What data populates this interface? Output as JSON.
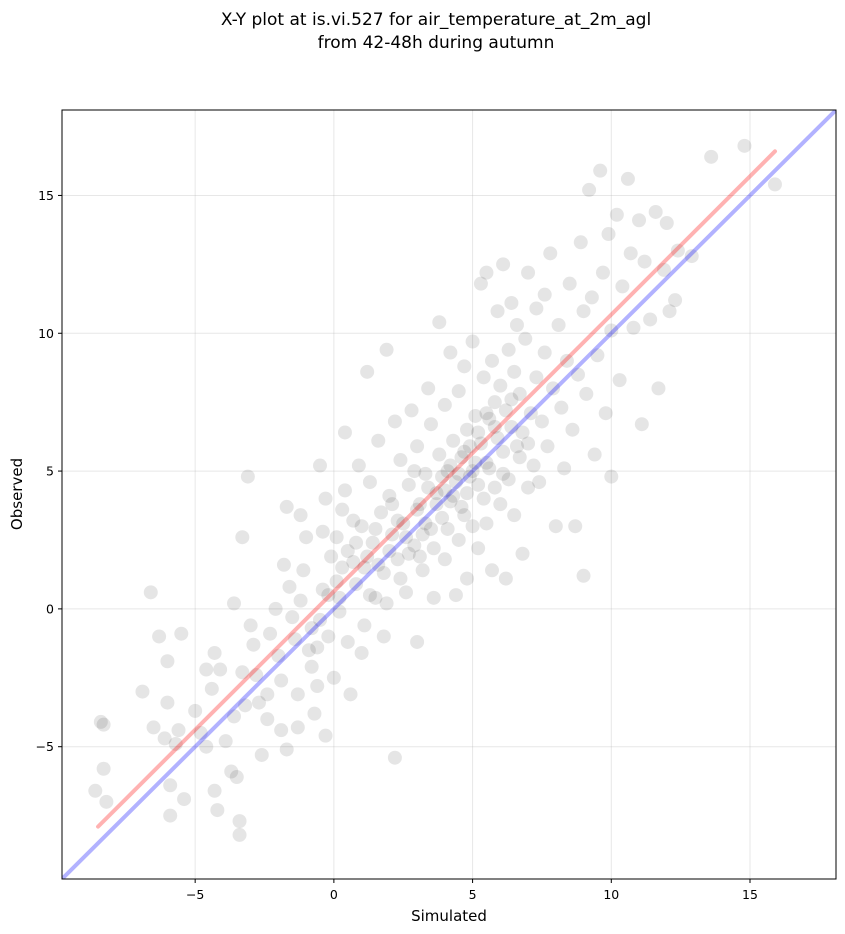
{
  "chart_data": {
    "type": "scatter",
    "title": [
      "X-Y plot at is.vi.527 for air_temperature_at_2m_agl",
      "from 42-48h during autumn"
    ],
    "xlabel": "Simulated",
    "ylabel": "Observed",
    "xlim": [
      -9.8,
      18.1
    ],
    "ylim": [
      -9.8,
      18.1
    ],
    "xticks": [
      -5,
      0,
      5,
      10,
      15
    ],
    "yticks": [
      -5,
      0,
      5,
      10,
      15
    ],
    "xtick_labels": [
      "−5",
      "0",
      "5",
      "10",
      "15"
    ],
    "ytick_labels": [
      "−5",
      "0",
      "5",
      "10",
      "15"
    ],
    "grid": true,
    "point_color": "#000000",
    "point_alpha": 0.1,
    "reference_lines": [
      {
        "color": "#0000ff",
        "alpha": 0.3,
        "x": [
          -9.8,
          18.1
        ],
        "y": [
          -9.8,
          18.1
        ]
      },
      {
        "color": "#ff0000",
        "alpha": 0.3,
        "x": [
          -8.5,
          15.9
        ],
        "y": [
          -7.9,
          16.6
        ]
      }
    ],
    "points": [
      [
        -8.6,
        -6.6
      ],
      [
        -8.4,
        -4.1
      ],
      [
        -8.3,
        -4.2
      ],
      [
        -8.3,
        -5.8
      ],
      [
        -8.2,
        -7.0
      ],
      [
        -6.6,
        0.6
      ],
      [
        -6.9,
        -3.0
      ],
      [
        -6.5,
        -4.3
      ],
      [
        -6.3,
        -1.0
      ],
      [
        -6.1,
        -4.7
      ],
      [
        -6.0,
        -1.9
      ],
      [
        -6.0,
        -3.4
      ],
      [
        -5.7,
        -4.9
      ],
      [
        -5.5,
        -0.9
      ],
      [
        -5.6,
        -4.4
      ],
      [
        -5.9,
        -6.4
      ],
      [
        -5.9,
        -7.5
      ],
      [
        -5.4,
        -6.9
      ],
      [
        -5.0,
        -3.7
      ],
      [
        -4.8,
        -4.5
      ],
      [
        -4.6,
        -2.2
      ],
      [
        -4.4,
        -2.9
      ],
      [
        -4.3,
        -1.6
      ],
      [
        -4.1,
        -2.2
      ],
      [
        -4.6,
        -5.0
      ],
      [
        -4.3,
        -6.6
      ],
      [
        -4.2,
        -7.3
      ],
      [
        -3.9,
        -4.8
      ],
      [
        -3.6,
        -3.9
      ],
      [
        -3.7,
        -5.9
      ],
      [
        -3.6,
        0.2
      ],
      [
        -3.3,
        -2.3
      ],
      [
        -3.5,
        -6.1
      ],
      [
        -3.4,
        -8.2
      ],
      [
        -3.4,
        -7.7
      ],
      [
        -3.3,
        2.6
      ],
      [
        -3.1,
        4.8
      ],
      [
        -3.2,
        -3.5
      ],
      [
        -3.0,
        -0.6
      ],
      [
        -2.9,
        -1.3
      ],
      [
        -2.8,
        -2.4
      ],
      [
        -2.7,
        -3.4
      ],
      [
        -2.6,
        -5.3
      ],
      [
        -2.4,
        -4.0
      ],
      [
        -2.4,
        -3.1
      ],
      [
        -2.3,
        -0.9
      ],
      [
        -2.1,
        0.0
      ],
      [
        -2.0,
        -1.7
      ],
      [
        -1.9,
        -2.6
      ],
      [
        -1.9,
        -4.4
      ],
      [
        -1.7,
        -5.1
      ],
      [
        -1.7,
        3.7
      ],
      [
        -1.6,
        0.8
      ],
      [
        -1.5,
        -0.3
      ],
      [
        -1.4,
        -1.1
      ],
      [
        -1.3,
        -3.1
      ],
      [
        -1.3,
        -4.3
      ],
      [
        -1.2,
        3.4
      ],
      [
        -1.1,
        1.4
      ],
      [
        -1.0,
        2.6
      ],
      [
        -0.8,
        -0.7
      ],
      [
        -0.8,
        -2.1
      ],
      [
        -0.7,
        -3.8
      ],
      [
        -0.6,
        -1.4
      ],
      [
        -0.5,
        5.2
      ],
      [
        -0.5,
        -0.4
      ],
      [
        -0.4,
        0.7
      ],
      [
        -0.4,
        2.8
      ],
      [
        -0.3,
        -4.6
      ],
      [
        -0.3,
        4.0
      ],
      [
        -0.2,
        -1.0
      ],
      [
        -0.1,
        1.9
      ],
      [
        0.0,
        -2.5
      ],
      [
        0.1,
        2.6
      ],
      [
        0.1,
        1.0
      ],
      [
        0.2,
        -0.1
      ],
      [
        0.3,
        3.6
      ],
      [
        0.4,
        6.4
      ],
      [
        0.4,
        4.3
      ],
      [
        0.5,
        2.1
      ],
      [
        0.6,
        -3.1
      ],
      [
        0.7,
        1.7
      ],
      [
        0.8,
        0.9
      ],
      [
        0.9,
        5.2
      ],
      [
        1.0,
        3.0
      ],
      [
        1.1,
        -0.6
      ],
      [
        1.2,
        8.6
      ],
      [
        1.2,
        1.9
      ],
      [
        1.3,
        4.6
      ],
      [
        1.4,
        2.4
      ],
      [
        1.5,
        0.4
      ],
      [
        1.6,
        6.1
      ],
      [
        1.7,
        3.5
      ],
      [
        1.8,
        -1.0
      ],
      [
        1.8,
        1.3
      ],
      [
        1.9,
        9.4
      ],
      [
        2.0,
        4.1
      ],
      [
        2.1,
        2.7
      ],
      [
        2.2,
        -5.4
      ],
      [
        2.2,
        6.8
      ],
      [
        2.3,
        1.8
      ],
      [
        2.4,
        5.4
      ],
      [
        2.5,
        3.1
      ],
      [
        2.6,
        0.6
      ],
      [
        2.7,
        4.5
      ],
      [
        2.8,
        7.2
      ],
      [
        2.9,
        2.3
      ],
      [
        3.0,
        -1.2
      ],
      [
        3.0,
        5.9
      ],
      [
        3.1,
        3.8
      ],
      [
        3.2,
        1.4
      ],
      [
        3.3,
        4.9
      ],
      [
        3.4,
        8.0
      ],
      [
        3.5,
        2.9
      ],
      [
        3.5,
        6.7
      ],
      [
        3.6,
        0.4
      ],
      [
        3.7,
        4.2
      ],
      [
        3.8,
        5.6
      ],
      [
        3.8,
        10.4
      ],
      [
        3.9,
        3.3
      ],
      [
        4.0,
        7.4
      ],
      [
        4.0,
        1.8
      ],
      [
        4.1,
        5.0
      ],
      [
        4.2,
        9.3
      ],
      [
        4.2,
        3.9
      ],
      [
        4.3,
        6.1
      ],
      [
        4.4,
        0.5
      ],
      [
        4.4,
        4.6
      ],
      [
        4.5,
        7.9
      ],
      [
        4.5,
        2.5
      ],
      [
        4.6,
        5.5
      ],
      [
        4.7,
        3.4
      ],
      [
        4.7,
        8.8
      ],
      [
        4.8,
        6.5
      ],
      [
        4.8,
        1.1
      ],
      [
        4.9,
        4.8
      ],
      [
        5.0,
        9.7
      ],
      [
        5.0,
        3.0
      ],
      [
        5.1,
        7.0
      ],
      [
        5.1,
        5.3
      ],
      [
        5.2,
        2.2
      ],
      [
        5.3,
        11.8
      ],
      [
        5.3,
        6.0
      ],
      [
        5.4,
        4.0
      ],
      [
        5.4,
        8.4
      ],
      [
        5.5,
        3.1
      ],
      [
        5.5,
        12.2
      ],
      [
        5.6,
        6.9
      ],
      [
        5.6,
        5.1
      ],
      [
        5.7,
        1.4
      ],
      [
        5.7,
        9.0
      ],
      [
        5.8,
        7.5
      ],
      [
        5.8,
        4.4
      ],
      [
        5.9,
        10.8
      ],
      [
        5.9,
        6.2
      ],
      [
        6.0,
        3.8
      ],
      [
        6.0,
        8.1
      ],
      [
        6.1,
        5.7
      ],
      [
        6.1,
        12.5
      ],
      [
        6.2,
        1.1
      ],
      [
        6.2,
        7.2
      ],
      [
        6.3,
        9.4
      ],
      [
        6.3,
        4.7
      ],
      [
        6.4,
        6.6
      ],
      [
        6.4,
        11.1
      ],
      [
        6.5,
        8.6
      ],
      [
        6.5,
        3.4
      ],
      [
        6.6,
        5.9
      ],
      [
        6.6,
        10.3
      ],
      [
        6.7,
        7.8
      ],
      [
        6.8,
        2.0
      ],
      [
        6.8,
        6.4
      ],
      [
        6.9,
        9.8
      ],
      [
        7.0,
        4.4
      ],
      [
        7.0,
        12.2
      ],
      [
        7.1,
        7.1
      ],
      [
        7.2,
        5.2
      ],
      [
        7.3,
        10.9
      ],
      [
        7.3,
        8.4
      ],
      [
        7.4,
        4.6
      ],
      [
        7.5,
        6.8
      ],
      [
        7.6,
        11.4
      ],
      [
        7.6,
        9.3
      ],
      [
        7.7,
        5.9
      ],
      [
        7.8,
        12.9
      ],
      [
        7.9,
        8.0
      ],
      [
        8.0,
        3.0
      ],
      [
        8.1,
        10.3
      ],
      [
        8.2,
        7.3
      ],
      [
        8.3,
        5.1
      ],
      [
        8.4,
        9.0
      ],
      [
        8.5,
        11.8
      ],
      [
        8.6,
        6.5
      ],
      [
        8.7,
        3.0
      ],
      [
        8.8,
        8.5
      ],
      [
        8.9,
        13.3
      ],
      [
        9.0,
        1.2
      ],
      [
        9.0,
        10.8
      ],
      [
        9.1,
        7.8
      ],
      [
        9.2,
        15.2
      ],
      [
        9.3,
        11.3
      ],
      [
        9.4,
        5.6
      ],
      [
        9.5,
        9.2
      ],
      [
        9.6,
        15.9
      ],
      [
        9.7,
        12.2
      ],
      [
        9.8,
        7.1
      ],
      [
        9.9,
        13.6
      ],
      [
        10.0,
        10.1
      ],
      [
        10.0,
        4.8
      ],
      [
        10.2,
        14.3
      ],
      [
        10.3,
        8.3
      ],
      [
        10.4,
        11.7
      ],
      [
        10.6,
        15.6
      ],
      [
        10.7,
        12.9
      ],
      [
        10.8,
        10.2
      ],
      [
        11.0,
        14.1
      ],
      [
        11.1,
        6.7
      ],
      [
        11.2,
        12.6
      ],
      [
        11.4,
        10.5
      ],
      [
        11.6,
        14.4
      ],
      [
        11.7,
        8.0
      ],
      [
        11.9,
        12.3
      ],
      [
        12.0,
        14.0
      ],
      [
        12.1,
        10.8
      ],
      [
        12.3,
        11.2
      ],
      [
        12.4,
        13.0
      ],
      [
        12.9,
        12.8
      ],
      [
        13.6,
        16.4
      ],
      [
        14.8,
        16.8
      ],
      [
        15.9,
        15.4
      ],
      [
        -1.8,
        1.6
      ],
      [
        -1.2,
        0.3
      ],
      [
        -0.9,
        -1.5
      ],
      [
        -0.6,
        -2.8
      ],
      [
        0.2,
        0.4
      ],
      [
        0.5,
        -1.2
      ],
      [
        0.7,
        3.2
      ],
      [
        1.0,
        -1.6
      ],
      [
        1.3,
        0.5
      ],
      [
        1.5,
        2.9
      ],
      [
        1.9,
        0.2
      ],
      [
        2.1,
        3.8
      ],
      [
        2.4,
        1.1
      ],
      [
        2.7,
        2.0
      ],
      [
        2.9,
        5.0
      ],
      [
        3.1,
        1.9
      ],
      [
        3.3,
        3.1
      ],
      [
        3.6,
        2.2
      ],
      [
        3.9,
        4.8
      ],
      [
        4.1,
        2.9
      ],
      [
        4.3,
        4.1
      ],
      [
        4.6,
        3.7
      ],
      [
        4.9,
        5.9
      ],
      [
        5.2,
        4.5
      ],
      [
        5.5,
        5.3
      ],
      [
        5.8,
        6.6
      ],
      [
        6.1,
        4.9
      ],
      [
        6.4,
        7.6
      ],
      [
        6.7,
        5.5
      ],
      [
        7.0,
        6.0
      ],
      [
        3.7,
        3.8
      ],
      [
        4.0,
        4.3
      ],
      [
        4.2,
        5.2
      ],
      [
        4.5,
        4.9
      ],
      [
        4.7,
        5.7
      ],
      [
        5.0,
        5.0
      ],
      [
        5.2,
        6.4
      ],
      [
        5.5,
        7.1
      ],
      [
        3.4,
        4.4
      ],
      [
        4.8,
        4.2
      ],
      [
        2.6,
        2.6
      ],
      [
        3.0,
        3.6
      ],
      [
        3.2,
        2.7
      ],
      [
        2.0,
        2.1
      ],
      [
        2.3,
        3.2
      ],
      [
        1.6,
        1.6
      ],
      [
        1.1,
        1.5
      ],
      [
        0.8,
        2.4
      ],
      [
        0.3,
        1.5
      ],
      [
        -0.2,
        0.5
      ]
    ]
  }
}
